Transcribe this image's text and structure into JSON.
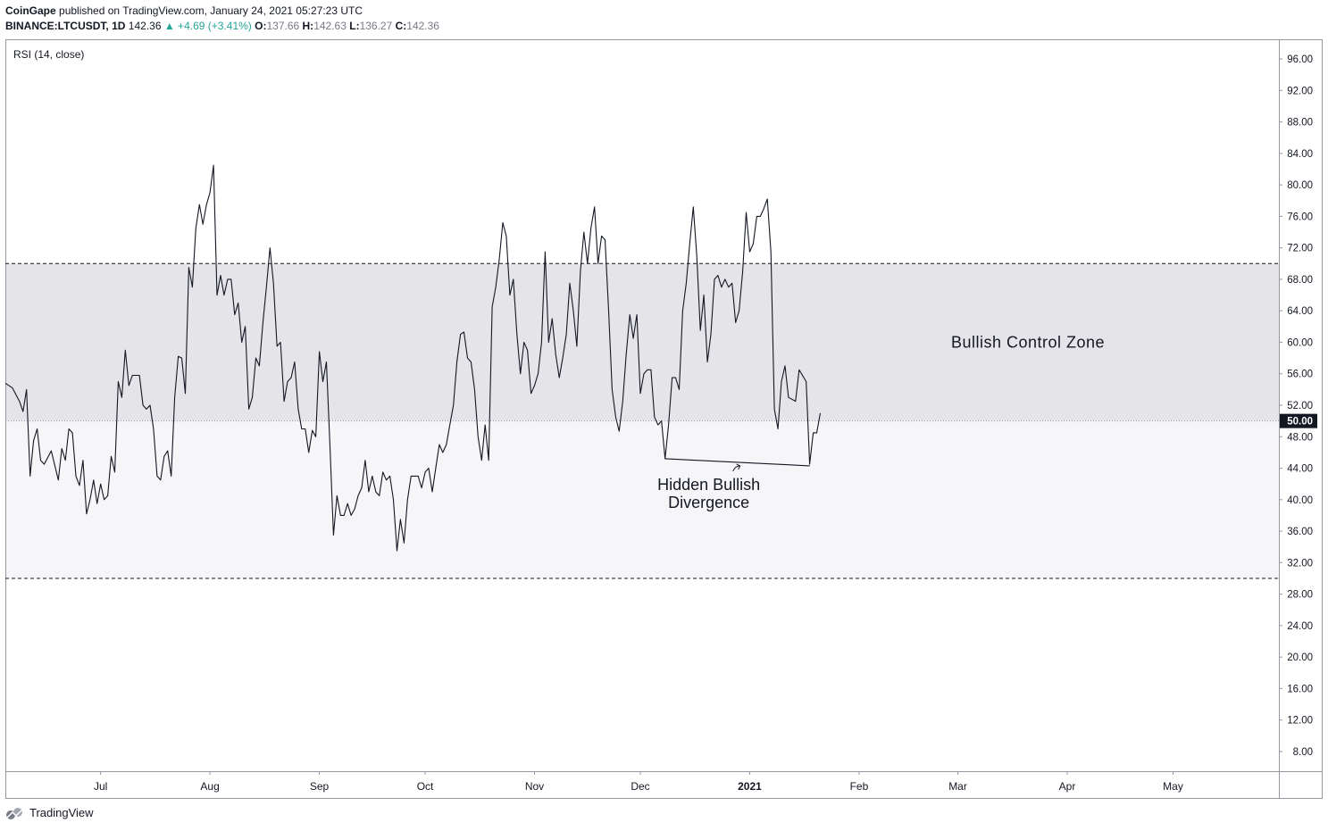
{
  "header": {
    "publisher": "CoinGape",
    "published_text": "published on TradingView.com, January 24, 2021 05:27:23 UTC",
    "symbol": "BINANCE:LTCUSDT, 1D",
    "last": "142.36",
    "change": "▲ +4.69 (+3.41%)",
    "o_label": "O:",
    "o_value": "137.66",
    "h_label": "H:",
    "h_value": "142.63",
    "l_label": "L:",
    "l_value": "136.27",
    "c_label": "C:",
    "c_value": "142.36"
  },
  "indicator_label": "RSI (14, close)",
  "footer": {
    "brand": "TradingView",
    "logo_icon": "tradingview-logo-icon"
  },
  "colors": {
    "line": "#131722",
    "zone_upper": "#e5e4e8",
    "zone_lower": "#f6f5f8",
    "price_tag_bg": "#131722",
    "price_tag_text": "#ffffff"
  },
  "chart_data": {
    "type": "line",
    "title": "",
    "xlabel": "",
    "ylabel": "",
    "ylim": [
      5.5,
      98.5
    ],
    "y_ticks": [
      "96.00",
      "92.00",
      "88.00",
      "84.00",
      "80.00",
      "76.00",
      "72.00",
      "68.00",
      "64.00",
      "60.00",
      "56.00",
      "52.00",
      "48.00",
      "44.00",
      "40.00",
      "36.00",
      "32.00",
      "28.00",
      "24.00",
      "20.00",
      "16.00",
      "12.00",
      "8.00"
    ],
    "current_value_label": "50.00",
    "x_tick_labels": [
      "Jul",
      "Aug",
      "Sep",
      "Oct",
      "Nov",
      "Dec",
      "2021",
      "Feb",
      "Mar",
      "Apr",
      "May"
    ],
    "x_tick_dates": [
      "2020-07-01",
      "2020-08-01",
      "2020-09-01",
      "2020-10-01",
      "2020-11-01",
      "2020-12-01",
      "2021-01-01",
      "2021-02-01",
      "2021-03-01",
      "2021-04-01",
      "2021-05-01"
    ],
    "x_range": [
      "2020-06-04",
      "2021-05-31"
    ],
    "levels": [
      70,
      50,
      30
    ],
    "zones": [
      {
        "from": 50,
        "to": 70,
        "label": "Bullish Control Zone"
      },
      {
        "from": 30,
        "to": 50,
        "label": ""
      }
    ],
    "series": [
      {
        "values": [
          [
            "2020-06-04",
            54.8
          ],
          [
            "2020-06-06",
            54.2
          ],
          [
            "2020-06-08",
            52.5
          ],
          [
            "2020-06-09",
            51.2
          ],
          [
            "2020-06-10",
            54.0
          ],
          [
            "2020-06-11",
            43.0
          ],
          [
            "2020-06-12",
            47.5
          ],
          [
            "2020-06-13",
            49.0
          ],
          [
            "2020-06-14",
            45.0
          ],
          [
            "2020-06-15",
            44.5
          ],
          [
            "2020-06-17",
            46.2
          ],
          [
            "2020-06-19",
            42.5
          ],
          [
            "2020-06-20",
            46.5
          ],
          [
            "2020-06-21",
            45.0
          ],
          [
            "2020-06-22",
            49.0
          ],
          [
            "2020-06-23",
            48.5
          ],
          [
            "2020-06-24",
            43.0
          ],
          [
            "2020-06-25",
            41.8
          ],
          [
            "2020-06-26",
            45.0
          ],
          [
            "2020-06-27",
            38.2
          ],
          [
            "2020-06-28",
            40.0
          ],
          [
            "2020-06-29",
            42.5
          ],
          [
            "2020-06-30",
            39.5
          ],
          [
            "2020-07-01",
            42.0
          ],
          [
            "2020-07-02",
            40.0
          ],
          [
            "2020-07-03",
            40.5
          ],
          [
            "2020-07-04",
            45.5
          ],
          [
            "2020-07-05",
            43.5
          ],
          [
            "2020-07-06",
            55.0
          ],
          [
            "2020-07-07",
            53.0
          ],
          [
            "2020-07-08",
            59.0
          ],
          [
            "2020-07-09",
            54.5
          ],
          [
            "2020-07-10",
            55.8
          ],
          [
            "2020-07-12",
            55.8
          ],
          [
            "2020-07-13",
            52.0
          ],
          [
            "2020-07-14",
            51.5
          ],
          [
            "2020-07-15",
            52.0
          ],
          [
            "2020-07-16",
            49.0
          ],
          [
            "2020-07-17",
            43.0
          ],
          [
            "2020-07-18",
            42.5
          ],
          [
            "2020-07-19",
            45.5
          ],
          [
            "2020-07-20",
            46.2
          ],
          [
            "2020-07-21",
            43.0
          ],
          [
            "2020-07-22",
            53.0
          ],
          [
            "2020-07-23",
            58.2
          ],
          [
            "2020-07-24",
            58.0
          ],
          [
            "2020-07-25",
            53.5
          ],
          [
            "2020-07-26",
            69.5
          ],
          [
            "2020-07-27",
            67.0
          ],
          [
            "2020-07-28",
            74.5
          ],
          [
            "2020-07-29",
            77.5
          ],
          [
            "2020-07-30",
            75.0
          ],
          [
            "2020-07-31",
            77.5
          ],
          [
            "2020-08-01",
            79.0
          ],
          [
            "2020-08-02",
            82.5
          ],
          [
            "2020-08-03",
            66.0
          ],
          [
            "2020-08-04",
            68.5
          ],
          [
            "2020-08-05",
            66.0
          ],
          [
            "2020-08-06",
            68.0
          ],
          [
            "2020-08-07",
            68.0
          ],
          [
            "2020-08-08",
            63.5
          ],
          [
            "2020-08-09",
            65.0
          ],
          [
            "2020-08-10",
            60.0
          ],
          [
            "2020-08-11",
            62.0
          ],
          [
            "2020-08-12",
            51.5
          ],
          [
            "2020-08-13",
            53.0
          ],
          [
            "2020-08-14",
            58.0
          ],
          [
            "2020-08-15",
            57.0
          ],
          [
            "2020-08-16",
            62.5
          ],
          [
            "2020-08-17",
            67.0
          ],
          [
            "2020-08-18",
            72.0
          ],
          [
            "2020-08-19",
            67.5
          ],
          [
            "2020-08-20",
            59.5
          ],
          [
            "2020-08-21",
            60.0
          ],
          [
            "2020-08-22",
            52.5
          ],
          [
            "2020-08-23",
            55.0
          ],
          [
            "2020-08-24",
            55.5
          ],
          [
            "2020-08-25",
            57.5
          ],
          [
            "2020-08-26",
            51.5
          ],
          [
            "2020-08-27",
            49.0
          ],
          [
            "2020-08-28",
            49.0
          ],
          [
            "2020-08-29",
            46.0
          ],
          [
            "2020-08-30",
            48.8
          ],
          [
            "2020-08-31",
            48.0
          ],
          [
            "2020-09-01",
            58.8
          ],
          [
            "2020-09-02",
            55.0
          ],
          [
            "2020-09-03",
            57.5
          ],
          [
            "2020-09-04",
            47.0
          ],
          [
            "2020-09-05",
            35.5
          ],
          [
            "2020-09-06",
            40.5
          ],
          [
            "2020-09-07",
            38.0
          ],
          [
            "2020-09-08",
            38.0
          ],
          [
            "2020-09-09",
            39.5
          ],
          [
            "2020-09-10",
            38.0
          ],
          [
            "2020-09-11",
            38.8
          ],
          [
            "2020-09-12",
            40.5
          ],
          [
            "2020-09-13",
            41.5
          ],
          [
            "2020-09-14",
            45.0
          ],
          [
            "2020-09-15",
            41.0
          ],
          [
            "2020-09-16",
            43.0
          ],
          [
            "2020-09-17",
            41.0
          ],
          [
            "2020-09-18",
            40.5
          ],
          [
            "2020-09-19",
            43.5
          ],
          [
            "2020-09-20",
            42.5
          ],
          [
            "2020-09-21",
            43.0
          ],
          [
            "2020-09-22",
            40.0
          ],
          [
            "2020-09-23",
            33.5
          ],
          [
            "2020-09-24",
            37.5
          ],
          [
            "2020-09-25",
            34.5
          ],
          [
            "2020-09-26",
            40.0
          ],
          [
            "2020-09-27",
            43.0
          ],
          [
            "2020-09-29",
            43.0
          ],
          [
            "2020-09-30",
            41.5
          ],
          [
            "2020-10-01",
            43.5
          ],
          [
            "2020-10-02",
            44.0
          ],
          [
            "2020-10-03",
            41.0
          ],
          [
            "2020-10-04",
            44.0
          ],
          [
            "2020-10-05",
            47.0
          ],
          [
            "2020-10-06",
            46.0
          ],
          [
            "2020-10-07",
            47.0
          ],
          [
            "2020-10-08",
            49.5
          ],
          [
            "2020-10-09",
            52.0
          ],
          [
            "2020-10-10",
            57.5
          ],
          [
            "2020-10-11",
            61.0
          ],
          [
            "2020-10-12",
            61.3
          ],
          [
            "2020-10-13",
            58.0
          ],
          [
            "2020-10-14",
            57.5
          ],
          [
            "2020-10-15",
            54.0
          ],
          [
            "2020-10-16",
            48.0
          ],
          [
            "2020-10-17",
            45.0
          ],
          [
            "2020-10-18",
            49.5
          ],
          [
            "2020-10-19",
            45.0
          ],
          [
            "2020-10-20",
            64.5
          ],
          [
            "2020-10-21",
            67.0
          ],
          [
            "2020-10-22",
            70.5
          ],
          [
            "2020-10-23",
            75.2
          ],
          [
            "2020-10-24",
            73.5
          ],
          [
            "2020-10-25",
            66.0
          ],
          [
            "2020-10-26",
            68.0
          ],
          [
            "2020-10-27",
            61.0
          ],
          [
            "2020-10-28",
            56.0
          ],
          [
            "2020-10-29",
            60.0
          ],
          [
            "2020-10-30",
            59.0
          ],
          [
            "2020-10-31",
            53.5
          ],
          [
            "2020-11-01",
            54.5
          ],
          [
            "2020-11-02",
            56.0
          ],
          [
            "2020-11-03",
            60.0
          ],
          [
            "2020-11-04",
            71.5
          ],
          [
            "2020-11-05",
            60.0
          ],
          [
            "2020-11-06",
            63.0
          ],
          [
            "2020-11-07",
            58.5
          ],
          [
            "2020-11-08",
            55.5
          ],
          [
            "2020-11-09",
            58.0
          ],
          [
            "2020-11-10",
            61.0
          ],
          [
            "2020-11-11",
            67.5
          ],
          [
            "2020-11-12",
            64.0
          ],
          [
            "2020-11-13",
            59.5
          ],
          [
            "2020-11-14",
            69.0
          ],
          [
            "2020-11-15",
            74.0
          ],
          [
            "2020-11-16",
            70.0
          ],
          [
            "2020-11-17",
            74.5
          ],
          [
            "2020-11-18",
            77.2
          ],
          [
            "2020-11-19",
            70.0
          ],
          [
            "2020-11-20",
            73.5
          ],
          [
            "2020-11-21",
            73.0
          ],
          [
            "2020-11-22",
            64.0
          ],
          [
            "2020-11-23",
            54.0
          ],
          [
            "2020-11-24",
            50.5
          ],
          [
            "2020-11-25",
            48.7
          ],
          [
            "2020-11-26",
            52.5
          ],
          [
            "2020-11-27",
            58.5
          ],
          [
            "2020-11-28",
            63.5
          ],
          [
            "2020-11-29",
            60.5
          ],
          [
            "2020-11-30",
            63.5
          ],
          [
            "2020-12-01",
            53.5
          ],
          [
            "2020-12-02",
            56.0
          ],
          [
            "2020-12-03",
            56.5
          ],
          [
            "2020-12-04",
            56.5
          ],
          [
            "2020-12-05",
            50.5
          ],
          [
            "2020-12-06",
            49.5
          ],
          [
            "2020-12-07",
            50.0
          ],
          [
            "2020-12-08",
            45.2
          ],
          [
            "2020-12-09",
            49.5
          ],
          [
            "2020-12-10",
            55.5
          ],
          [
            "2020-12-11",
            55.5
          ],
          [
            "2020-12-12",
            54.0
          ],
          [
            "2020-12-13",
            64.0
          ],
          [
            "2020-12-14",
            67.5
          ],
          [
            "2020-12-15",
            72.5
          ],
          [
            "2020-12-16",
            77.2
          ],
          [
            "2020-12-17",
            71.0
          ],
          [
            "2020-12-18",
            61.5
          ],
          [
            "2020-12-19",
            66.0
          ],
          [
            "2020-12-20",
            57.5
          ],
          [
            "2020-12-21",
            61.0
          ],
          [
            "2020-12-22",
            68.0
          ],
          [
            "2020-12-23",
            68.5
          ],
          [
            "2020-12-24",
            67.0
          ],
          [
            "2020-12-25",
            68.0
          ],
          [
            "2020-12-26",
            67.0
          ],
          [
            "2020-12-27",
            67.5
          ],
          [
            "2020-12-28",
            62.5
          ],
          [
            "2020-12-29",
            64.0
          ],
          [
            "2020-12-30",
            69.0
          ],
          [
            "2020-12-31",
            76.5
          ],
          [
            "2021-01-01",
            71.5
          ],
          [
            "2021-01-02",
            72.5
          ],
          [
            "2021-01-03",
            76.0
          ],
          [
            "2021-01-04",
            76.0
          ],
          [
            "2021-01-05",
            77.0
          ],
          [
            "2021-01-06",
            78.2
          ],
          [
            "2021-01-07",
            71.5
          ],
          [
            "2021-01-08",
            51.5
          ],
          [
            "2021-01-09",
            49.0
          ],
          [
            "2021-01-10",
            55.0
          ],
          [
            "2021-01-11",
            57.0
          ],
          [
            "2021-01-12",
            53.0
          ],
          [
            "2021-01-14",
            52.5
          ],
          [
            "2021-01-15",
            56.5
          ],
          [
            "2021-01-17",
            55.0
          ],
          [
            "2021-01-18",
            44.5
          ],
          [
            "2021-01-19",
            48.5
          ],
          [
            "2021-01-20",
            48.5
          ],
          [
            "2021-01-21",
            51.0
          ]
        ]
      }
    ],
    "annotations": [
      {
        "type": "trendline",
        "points": [
          [
            "2020-12-08",
            45.2
          ],
          [
            "2021-01-18",
            44.3
          ]
        ],
        "label": "Hidden Bullish Divergence",
        "label_lines": [
          "Hidden Bullish",
          "Divergence"
        ]
      }
    ]
  }
}
